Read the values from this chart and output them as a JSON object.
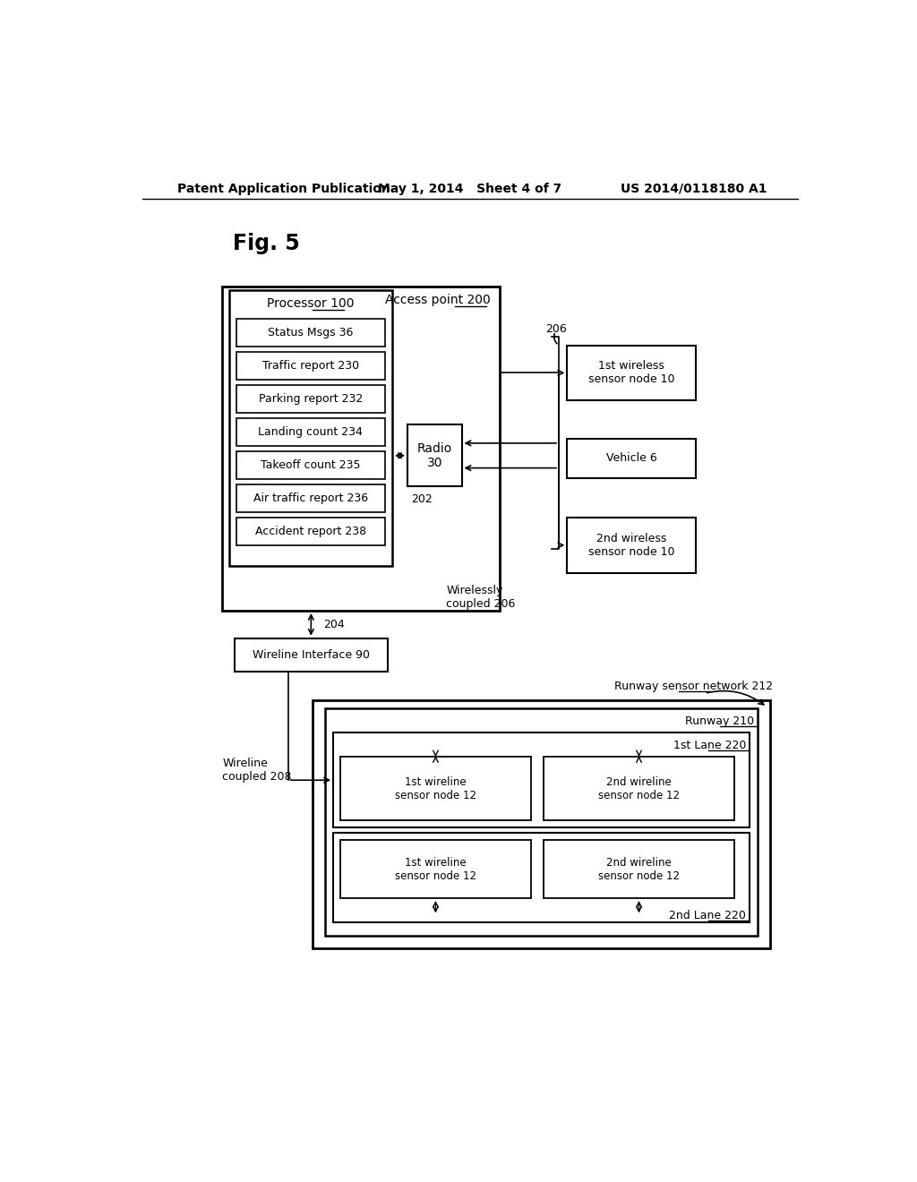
{
  "bg_color": "#ffffff",
  "header_left": "Patent Application Publication",
  "header_mid": "May 1, 2014   Sheet 4 of 7",
  "header_right": "US 2014/0118180 A1",
  "fig_label": "Fig. 5"
}
